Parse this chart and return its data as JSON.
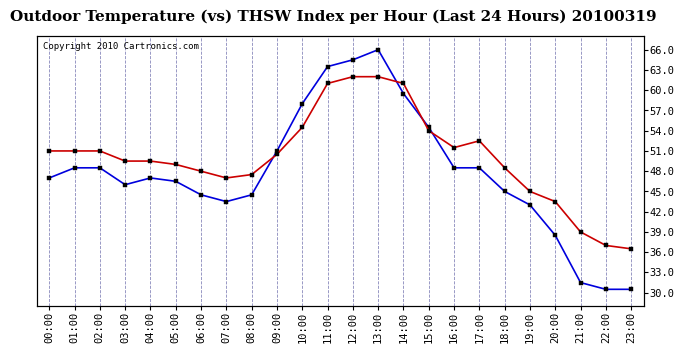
{
  "title": "Outdoor Temperature (vs) THSW Index per Hour (Last 24 Hours) 20100319",
  "copyright": "Copyright 2010 Cartronics.com",
  "hours": [
    "00:00",
    "01:00",
    "02:00",
    "03:00",
    "04:00",
    "05:00",
    "06:00",
    "07:00",
    "08:00",
    "09:00",
    "10:00",
    "11:00",
    "12:00",
    "13:00",
    "14:00",
    "15:00",
    "16:00",
    "17:00",
    "18:00",
    "19:00",
    "20:00",
    "21:00",
    "22:00",
    "23:00"
  ],
  "temp_blue": [
    47.0,
    48.5,
    48.5,
    46.0,
    47.0,
    46.5,
    44.5,
    43.5,
    44.5,
    51.0,
    58.0,
    63.5,
    64.5,
    66.0,
    59.5,
    54.5,
    48.5,
    48.5,
    45.0,
    43.0,
    38.5,
    31.5,
    30.5,
    30.5
  ],
  "temp_red": [
    51.0,
    51.0,
    51.0,
    49.5,
    49.5,
    49.0,
    48.0,
    47.0,
    47.5,
    50.5,
    54.5,
    61.0,
    62.0,
    62.0,
    61.0,
    54.0,
    51.5,
    52.5,
    48.5,
    45.0,
    43.5,
    39.0,
    37.0,
    36.5
  ],
  "ylim": [
    28,
    68
  ],
  "yticks_right": [
    30.0,
    33.0,
    36.0,
    39.0,
    42.0,
    45.0,
    48.0,
    51.0,
    54.0,
    57.0,
    60.0,
    63.0,
    66.0
  ],
  "blue_color": "#0000dd",
  "red_color": "#cc0000",
  "bg_color": "#ffffff",
  "grid_color": "#8888bb",
  "title_fontsize": 11,
  "tick_fontsize": 7.5,
  "copyright_fontsize": 6.5
}
